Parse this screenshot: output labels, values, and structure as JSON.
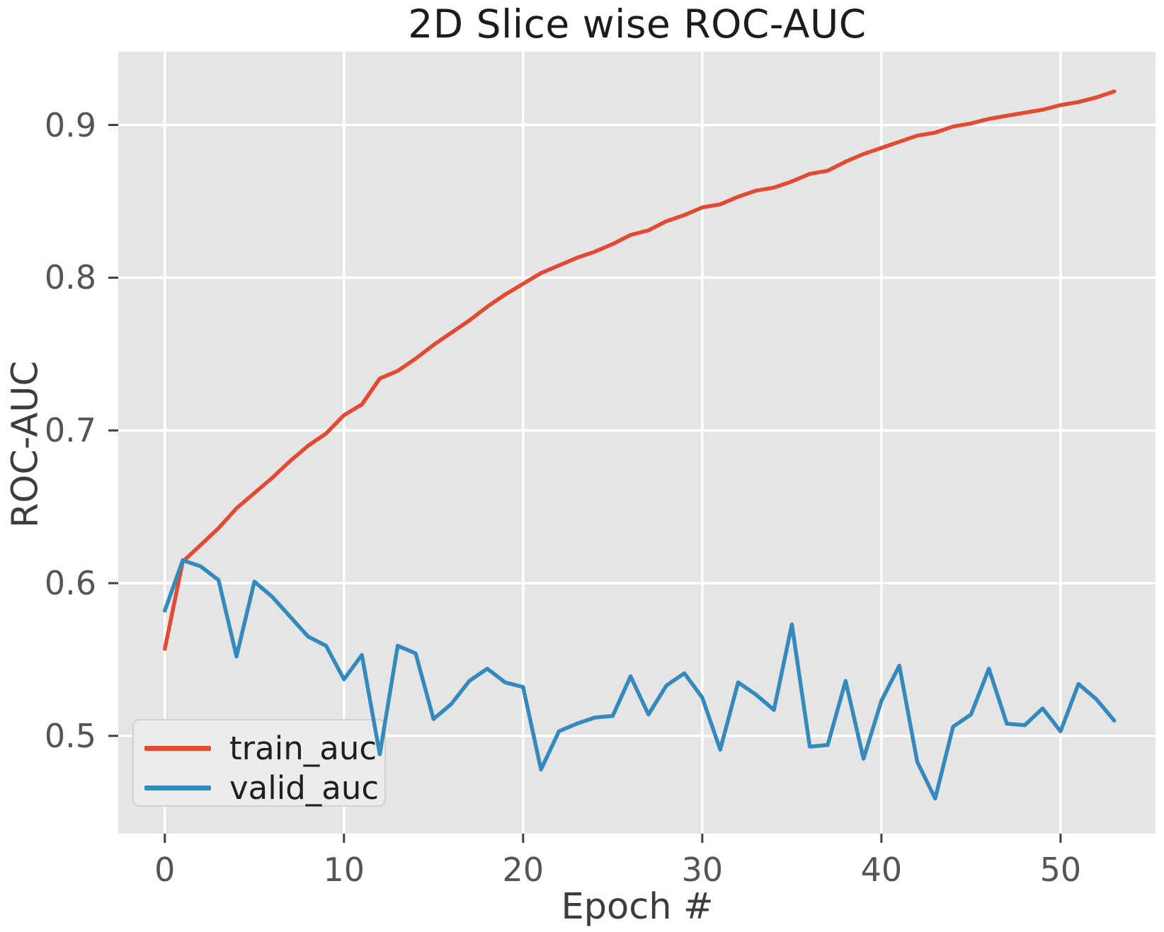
{
  "chart_data": {
    "type": "line",
    "title": "2D Slice wise ROC-AUC",
    "xlabel": "Epoch #",
    "ylabel": "ROC-AUC",
    "grid": true,
    "legend_position": "lower left",
    "xlim": [
      -2.6,
      55.3
    ],
    "ylim": [
      0.436,
      0.948
    ],
    "x_ticks": [
      0,
      10,
      20,
      30,
      40,
      50
    ],
    "y_ticks": [
      "0.5",
      "0.6",
      "0.7",
      "0.8",
      "0.9"
    ],
    "y_tick_values": [
      0.5,
      0.6,
      0.7,
      0.8,
      0.9
    ],
    "x": [
      0,
      1,
      2,
      3,
      4,
      5,
      6,
      7,
      8,
      9,
      10,
      11,
      12,
      13,
      14,
      15,
      16,
      17,
      18,
      19,
      20,
      21,
      22,
      23,
      24,
      25,
      26,
      27,
      28,
      29,
      30,
      31,
      32,
      33,
      34,
      35,
      36,
      37,
      38,
      39,
      40,
      41,
      42,
      43,
      44,
      45,
      46,
      47,
      48,
      49,
      50,
      51,
      52,
      53
    ],
    "series": [
      {
        "name": "train_auc",
        "color": "#E24A33",
        "values": [
          0.557,
          0.614,
          0.625,
          0.636,
          0.649,
          0.659,
          0.669,
          0.68,
          0.69,
          0.698,
          0.71,
          0.717,
          0.734,
          0.739,
          0.747,
          0.756,
          0.764,
          0.772,
          0.781,
          0.789,
          0.796,
          0.803,
          0.808,
          0.813,
          0.817,
          0.822,
          0.828,
          0.831,
          0.837,
          0.841,
          0.846,
          0.848,
          0.853,
          0.857,
          0.859,
          0.863,
          0.868,
          0.87,
          0.876,
          0.881,
          0.885,
          0.889,
          0.893,
          0.895,
          0.899,
          0.901,
          0.904,
          0.906,
          0.908,
          0.91,
          0.913,
          0.915,
          0.918,
          0.922
        ]
      },
      {
        "name": "valid_auc",
        "color": "#348ABD",
        "values": [
          0.582,
          0.615,
          0.611,
          0.602,
          0.552,
          0.601,
          0.591,
          0.578,
          0.565,
          0.559,
          0.537,
          0.553,
          0.488,
          0.559,
          0.554,
          0.511,
          0.521,
          0.536,
          0.544,
          0.535,
          0.532,
          0.478,
          0.503,
          0.508,
          0.512,
          0.513,
          0.539,
          0.514,
          0.533,
          0.541,
          0.525,
          0.491,
          0.535,
          0.527,
          0.517,
          0.573,
          0.493,
          0.494,
          0.536,
          0.485,
          0.523,
          0.546,
          0.483,
          0.459,
          0.506,
          0.514,
          0.544,
          0.508,
          0.507,
          0.518,
          0.503,
          0.534,
          0.524,
          0.51
        ]
      }
    ],
    "colors": {
      "plot_background": "#E5E5E5",
      "figure_background": "#FFFFFF",
      "gridline": "#FFFFFF",
      "tick_mark": "#404040",
      "tick_label": "#555555",
      "axis_label": "#3D3D3D",
      "title": "#1C1C1C",
      "legend_background": "#ECECEC",
      "legend_border": "#D0D0D0",
      "legend_text": "#1F1F1F"
    }
  },
  "legend": {
    "items": [
      {
        "label": "train_auc",
        "color": "#E24A33"
      },
      {
        "label": "valid_auc",
        "color": "#348ABD"
      }
    ]
  }
}
